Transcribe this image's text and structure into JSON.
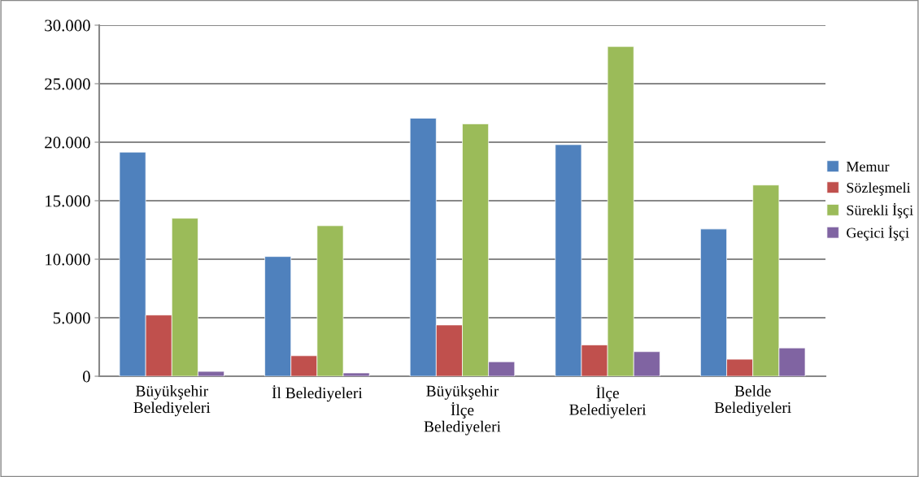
{
  "chart_data": {
    "type": "bar",
    "categories": [
      "Büyükşehir\nBelediyeleri",
      "İl Belediyeleri",
      "Büyükşehir\nİlçe\nBelediyeleri",
      "İlçe\nBelediyeleri",
      "Belde\nBelediyeleri"
    ],
    "series": [
      {
        "name": "Memur",
        "color": "#4f81bd",
        "values": [
          19150,
          10230,
          22050,
          19790,
          12580
        ]
      },
      {
        "name": "Sözleşmeli",
        "color": "#c0504d",
        "values": [
          5230,
          1750,
          4380,
          2670,
          1450
        ]
      },
      {
        "name": "Sürekli İşçi",
        "color": "#9bbb59",
        "values": [
          13500,
          12860,
          21570,
          28180,
          16340
        ]
      },
      {
        "name": "Geçici İşçi",
        "color": "#8064a2",
        "values": [
          410,
          280,
          1240,
          2100,
          2420
        ]
      }
    ],
    "ylim": [
      0,
      30000
    ],
    "yticks": [
      {
        "value": 0,
        "label": "0"
      },
      {
        "value": 5000,
        "label": "5.000"
      },
      {
        "value": 10000,
        "label": "10.000"
      },
      {
        "value": 15000,
        "label": "15.000"
      },
      {
        "value": 20000,
        "label": "20.000"
      },
      {
        "value": 25000,
        "label": "25.000"
      },
      {
        "value": 30000,
        "label": "30.000"
      }
    ],
    "grid": "y",
    "legend": "right"
  }
}
